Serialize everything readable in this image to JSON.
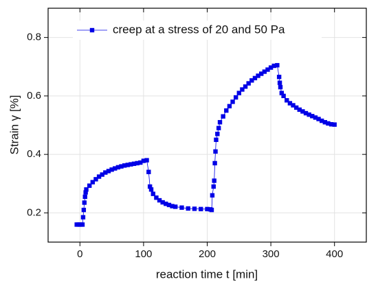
{
  "chart_data": {
    "type": "line",
    "xlabel": "reaction time t [min]",
    "ylabel": "Strain γ [%]",
    "x": [
      -5,
      -2,
      1,
      4,
      5,
      6,
      7,
      8,
      9,
      10,
      15,
      20,
      25,
      30,
      35,
      40,
      45,
      50,
      55,
      60,
      65,
      70,
      75,
      80,
      85,
      90,
      95,
      100,
      105,
      108,
      110,
      112,
      115,
      120,
      125,
      130,
      135,
      140,
      145,
      150,
      160,
      170,
      180,
      190,
      200,
      205,
      207,
      208,
      210,
      211,
      212,
      213,
      214,
      216,
      218,
      220,
      225,
      230,
      235,
      240,
      245,
      250,
      255,
      260,
      265,
      270,
      275,
      280,
      285,
      290,
      295,
      300,
      305,
      310,
      313,
      314,
      315,
      317,
      320,
      325,
      330,
      335,
      340,
      345,
      350,
      355,
      360,
      365,
      370,
      375,
      380,
      385,
      390,
      395,
      400
    ],
    "series": [
      {
        "name": "creep at a stress of 20 and 50 Pa",
        "color": "#0000e6",
        "values": [
          0.16,
          0.16,
          0.16,
          0.16,
          0.185,
          0.21,
          0.235,
          0.255,
          0.27,
          0.28,
          0.293,
          0.305,
          0.315,
          0.324,
          0.331,
          0.338,
          0.343,
          0.348,
          0.352,
          0.356,
          0.359,
          0.362,
          0.364,
          0.366,
          0.368,
          0.37,
          0.372,
          0.378,
          0.38,
          0.34,
          0.29,
          0.28,
          0.265,
          0.252,
          0.243,
          0.236,
          0.231,
          0.227,
          0.223,
          0.221,
          0.218,
          0.215,
          0.214,
          0.213,
          0.213,
          0.212,
          0.21,
          0.26,
          0.29,
          0.31,
          0.37,
          0.41,
          0.45,
          0.47,
          0.49,
          0.51,
          0.53,
          0.55,
          0.565,
          0.58,
          0.595,
          0.61,
          0.622,
          0.632,
          0.643,
          0.653,
          0.661,
          0.669,
          0.676,
          0.683,
          0.69,
          0.697,
          0.703,
          0.705,
          0.665,
          0.645,
          0.63,
          0.61,
          0.6,
          0.585,
          0.575,
          0.568,
          0.56,
          0.553,
          0.547,
          0.541,
          0.536,
          0.531,
          0.526,
          0.521,
          0.515,
          0.51,
          0.506,
          0.503,
          0.502
        ]
      }
    ],
    "xlim": [
      -50,
      450
    ],
    "ylim": [
      0.1,
      0.9
    ],
    "xticks": [
      0,
      100,
      200,
      300,
      400
    ],
    "yticks": [
      0.2,
      0.4,
      0.6,
      0.8
    ],
    "grid": true,
    "legend": "top"
  }
}
